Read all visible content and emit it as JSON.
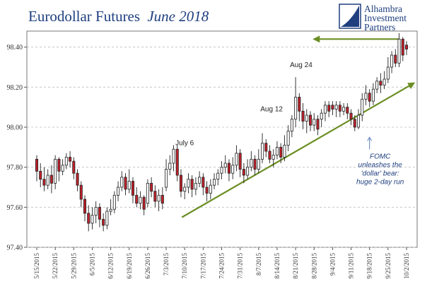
{
  "chart_data": {
    "type": "candlestick",
    "title": "Eurodollar Futures",
    "title_italic": "June 2018",
    "logo": {
      "line1": "Alhambra",
      "line2": "Investment",
      "line3": "Partners"
    },
    "ylim": [
      97.4,
      98.48
    ],
    "y_ticks": [
      "97.40",
      "97.60",
      "97.80",
      "98.00",
      "98.20",
      "98.40"
    ],
    "grid": true,
    "up_color": "#ffffff",
    "down_color": "#c0202a",
    "trend_color": "#6b8e23",
    "x_ticks": [
      "5/15/2015",
      "5/22/2015",
      "5/29/2015",
      "6/5/2015",
      "6/12/2015",
      "6/19/2015",
      "6/26/2015",
      "7/3/2015",
      "7/10/2015",
      "7/17/2015",
      "7/24/2015",
      "7/31/2015",
      "8/7/2015",
      "8/14/2015",
      "8/21/2015",
      "8/28/2015",
      "9/4/2015",
      "9/11/2015",
      "9/18/2015",
      "9/25/2015",
      "10/2/2015"
    ],
    "candles": [
      [
        97.84,
        97.78,
        97.86,
        97.73
      ],
      [
        97.78,
        97.74,
        97.82,
        97.7
      ],
      [
        97.74,
        97.71,
        97.8,
        97.68
      ],
      [
        97.71,
        97.76,
        97.79,
        97.69
      ],
      [
        97.76,
        97.72,
        97.81,
        97.67
      ],
      [
        97.72,
        97.84,
        97.86,
        97.69
      ],
      [
        97.84,
        97.78,
        97.85,
        97.73
      ],
      [
        97.78,
        97.81,
        97.84,
        97.76
      ],
      [
        97.81,
        97.85,
        97.87,
        97.79
      ],
      [
        97.85,
        97.83,
        97.88,
        97.8
      ],
      [
        97.83,
        97.77,
        97.85,
        97.74
      ],
      [
        97.77,
        97.71,
        97.79,
        97.68
      ],
      [
        97.71,
        97.64,
        97.73,
        97.6
      ],
      [
        97.64,
        97.57,
        97.66,
        97.53
      ],
      [
        97.57,
        97.52,
        97.61,
        97.48
      ],
      [
        97.52,
        97.56,
        97.6,
        97.49
      ],
      [
        97.56,
        97.6,
        97.63,
        97.52
      ],
      [
        97.6,
        97.54,
        97.62,
        97.5
      ],
      [
        97.54,
        97.51,
        97.57,
        97.48
      ],
      [
        97.51,
        97.58,
        97.6,
        97.49
      ],
      [
        97.58,
        97.59,
        97.64,
        97.56
      ],
      [
        97.59,
        97.66,
        97.68,
        97.57
      ],
      [
        97.66,
        97.7,
        97.73,
        97.63
      ],
      [
        97.7,
        97.75,
        97.78,
        97.68
      ],
      [
        97.75,
        97.69,
        97.77,
        97.66
      ],
      [
        97.69,
        97.73,
        97.79,
        97.67
      ],
      [
        97.73,
        97.66,
        97.75,
        97.62
      ],
      [
        97.66,
        97.62,
        97.7,
        97.6
      ],
      [
        97.62,
        97.65,
        97.68,
        97.59
      ],
      [
        97.65,
        97.59,
        97.66,
        97.56
      ],
      [
        97.62,
        97.72,
        97.74,
        97.6
      ],
      [
        97.72,
        97.68,
        97.75,
        97.65
      ],
      [
        97.68,
        97.63,
        97.71,
        97.6
      ],
      [
        97.63,
        97.66,
        97.69,
        97.58
      ],
      [
        97.66,
        97.62,
        97.7,
        97.59
      ],
      [
        97.7,
        97.79,
        97.84,
        97.68
      ],
      [
        97.79,
        97.82,
        97.86,
        97.76
      ],
      [
        97.82,
        97.89,
        97.91,
        97.78
      ],
      [
        97.89,
        97.76,
        97.91,
        97.73
      ],
      [
        97.76,
        97.68,
        97.79,
        97.65
      ],
      [
        97.68,
        97.7,
        97.72,
        97.64
      ],
      [
        97.7,
        97.74,
        97.77,
        97.67
      ],
      [
        97.74,
        97.69,
        97.76,
        97.65
      ],
      [
        97.69,
        97.72,
        97.75,
        97.66
      ],
      [
        97.72,
        97.75,
        97.78,
        97.7
      ],
      [
        97.75,
        97.7,
        97.77,
        97.66
      ],
      [
        97.7,
        97.67,
        97.73,
        97.63
      ],
      [
        97.67,
        97.71,
        97.74,
        97.64
      ],
      [
        97.71,
        97.74,
        97.77,
        97.69
      ],
      [
        97.74,
        97.77,
        97.79,
        97.71
      ],
      [
        97.77,
        97.8,
        97.83,
        97.74
      ],
      [
        97.8,
        97.82,
        97.86,
        97.77
      ],
      [
        97.82,
        97.77,
        97.84,
        97.73
      ],
      [
        97.77,
        97.81,
        97.85,
        97.74
      ],
      [
        97.81,
        97.87,
        97.91,
        97.78
      ],
      [
        97.87,
        97.79,
        97.89,
        97.75
      ],
      [
        97.79,
        97.76,
        97.82,
        97.72
      ],
      [
        97.76,
        97.8,
        97.84,
        97.74
      ],
      [
        97.8,
        97.84,
        97.88,
        97.78
      ],
      [
        97.84,
        97.79,
        97.86,
        97.76
      ],
      [
        97.79,
        97.84,
        97.89,
        97.77
      ],
      [
        97.84,
        97.92,
        97.97,
        97.82
      ],
      [
        97.92,
        97.88,
        97.94,
        97.85
      ],
      [
        97.88,
        97.84,
        97.91,
        97.82
      ],
      [
        97.84,
        97.86,
        97.89,
        97.8
      ],
      [
        97.86,
        97.9,
        97.93,
        97.84
      ],
      [
        97.9,
        97.85,
        97.92,
        97.82
      ],
      [
        97.85,
        97.91,
        97.96,
        97.83
      ],
      [
        97.91,
        97.98,
        98.01,
        97.88
      ],
      [
        97.98,
        98.04,
        98.06,
        97.95
      ],
      [
        98.04,
        98.15,
        98.25,
        98.0
      ],
      [
        98.15,
        98.08,
        98.17,
        98.03
      ],
      [
        98.08,
        98.03,
        98.12,
        97.99
      ],
      [
        98.03,
        98.06,
        98.09,
        97.97
      ],
      [
        98.06,
        98.01,
        98.08,
        97.98
      ],
      [
        98.01,
        98.04,
        98.07,
        97.98
      ],
      [
        98.04,
        97.99,
        98.06,
        97.96
      ],
      [
        98.04,
        98.07,
        98.09,
        98.0
      ],
      [
        98.07,
        98.11,
        98.13,
        98.03
      ],
      [
        98.11,
        98.08,
        98.13,
        98.05
      ],
      [
        98.11,
        98.09,
        98.13,
        98.06
      ],
      [
        98.09,
        98.11,
        98.13,
        98.05
      ],
      [
        98.11,
        98.08,
        98.13,
        98.05
      ],
      [
        98.08,
        98.1,
        98.12,
        98.06
      ],
      [
        98.1,
        98.07,
        98.12,
        98.04
      ],
      [
        98.07,
        98.04,
        98.09,
        98.01
      ],
      [
        98.04,
        98.0,
        98.06,
        97.98
      ],
      [
        98.0,
        98.06,
        98.09,
        97.99
      ],
      [
        98.06,
        98.14,
        98.17,
        98.03
      ],
      [
        98.14,
        98.17,
        98.21,
        98.11
      ],
      [
        98.17,
        98.13,
        98.19,
        98.1
      ],
      [
        98.13,
        98.19,
        98.22,
        98.11
      ],
      [
        98.19,
        98.23,
        98.25,
        98.17
      ],
      [
        98.23,
        98.21,
        98.27,
        98.17
      ],
      [
        98.21,
        98.24,
        98.28,
        98.19
      ],
      [
        98.24,
        98.3,
        98.35,
        98.22
      ],
      [
        98.3,
        98.36,
        98.38,
        98.27
      ],
      [
        98.36,
        98.32,
        98.39,
        98.3
      ],
      [
        98.32,
        98.44,
        98.47,
        98.3
      ],
      [
        98.44,
        98.36,
        98.45,
        98.33
      ],
      [
        98.41,
        98.39,
        98.43,
        98.36
      ]
    ],
    "annotations": [
      {
        "text": "July 6",
        "x": 8.0,
        "y": 97.91
      },
      {
        "text": "Aug 12",
        "x": 12.7,
        "y": 98.08
      },
      {
        "text": "Aug 24",
        "x": 14.3,
        "y": 98.3
      }
    ],
    "fomc_note": [
      "FOMC",
      "unleashes the",
      "'dollar' bear:",
      "huge 2-day run"
    ],
    "fomc_pos": {
      "x": 18.0,
      "y": 97.96
    },
    "trend_lines": [
      {
        "from": [
          7.85,
          97.55
        ],
        "to": [
          20.4,
          98.22
        ],
        "arrow": "end"
      },
      {
        "from": [
          19.6,
          98.44
        ],
        "to": [
          15.0,
          98.44
        ],
        "arrow": "end"
      }
    ]
  }
}
